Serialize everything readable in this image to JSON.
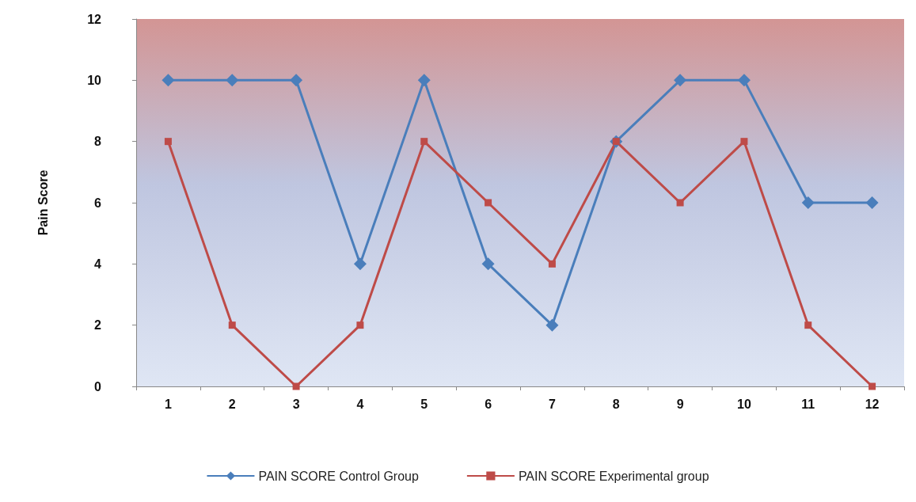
{
  "chart_data": {
    "type": "line",
    "ylabel": "Pain Score",
    "categories": [
      "1",
      "2",
      "3",
      "4",
      "5",
      "6",
      "7",
      "8",
      "9",
      "10",
      "11",
      "12"
    ],
    "series": [
      {
        "name": "PAIN SCORE Control Group",
        "color": "#4a7ebb",
        "marker": "diamond",
        "values": [
          10,
          10,
          10,
          4,
          10,
          4,
          2,
          8,
          10,
          10,
          6,
          6
        ]
      },
      {
        "name": "PAIN SCORE Experimental group",
        "color": "#be4b48",
        "marker": "square",
        "values": [
          8,
          2,
          0,
          2,
          8,
          6,
          4,
          8,
          6,
          8,
          2,
          0
        ]
      }
    ],
    "ylim": [
      0,
      12
    ],
    "yticks": [
      0,
      2,
      4,
      6,
      8,
      10,
      12
    ],
    "grid": false,
    "legend": "bottom"
  }
}
